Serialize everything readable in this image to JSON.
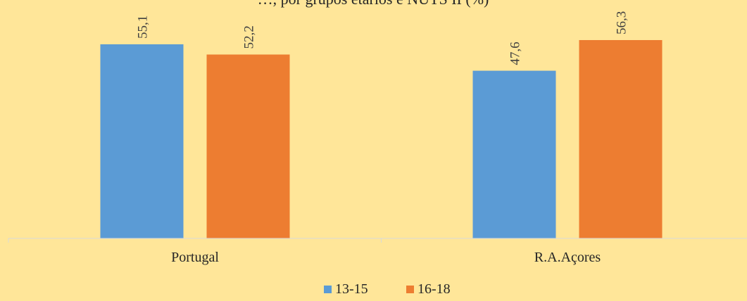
{
  "chart_data": {
    "type": "bar",
    "title": "…, por grupos etários e NUTS II (%)",
    "categories": [
      "Portugal",
      "R.A.Açores"
    ],
    "series": [
      {
        "name": "13-15",
        "values": [
          55.1,
          47.6
        ],
        "labels": [
          "55,1",
          "47,6"
        ],
        "color": "#5B9BD5"
      },
      {
        "name": "16-18",
        "values": [
          52.2,
          56.3
        ],
        "labels": [
          "52,2",
          "56,3"
        ],
        "color": "#ED7D31"
      }
    ],
    "ylim": [
      0,
      60
    ],
    "grid": false,
    "legend_position": "bottom",
    "background_color": "#FFE699"
  }
}
